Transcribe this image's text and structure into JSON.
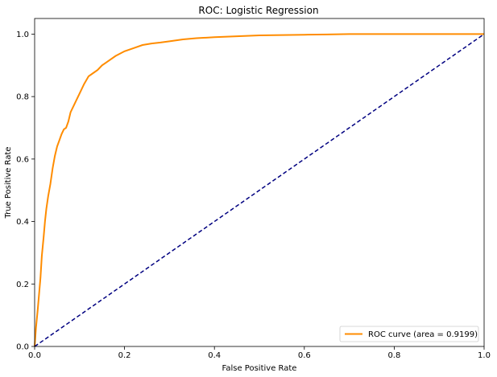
{
  "chart_data": {
    "type": "line",
    "title": "ROC: Logistic Regression",
    "xlabel": "False Positive Rate",
    "ylabel": "True Positive Rate",
    "xlim": [
      0.0,
      1.0
    ],
    "ylim": [
      0.0,
      1.05
    ],
    "x_ticks": [
      0.0,
      0.2,
      0.4,
      0.6,
      0.8,
      1.0
    ],
    "y_ticks": [
      0.0,
      0.2,
      0.4,
      0.6,
      0.8,
      1.0
    ],
    "x_tick_labels": [
      "0.0",
      "0.2",
      "0.4",
      "0.6",
      "0.8",
      "1.0"
    ],
    "y_tick_labels": [
      "0.0",
      "0.2",
      "0.4",
      "0.6",
      "0.8",
      "1.0"
    ],
    "grid": false,
    "legend_position": "lower-right",
    "series": [
      {
        "name": "ROC curve (area = 0.9199)",
        "color": "#ff8c00",
        "style": "solid",
        "x": [
          0.0,
          0.003,
          0.007,
          0.01,
          0.013,
          0.016,
          0.02,
          0.023,
          0.026,
          0.03,
          0.035,
          0.04,
          0.045,
          0.05,
          0.055,
          0.06,
          0.065,
          0.07,
          0.075,
          0.08,
          0.09,
          0.1,
          0.11,
          0.12,
          0.13,
          0.14,
          0.15,
          0.16,
          0.18,
          0.2,
          0.22,
          0.24,
          0.26,
          0.28,
          0.3,
          0.33,
          0.36,
          0.4,
          0.45,
          0.5,
          0.55,
          0.6,
          0.65,
          0.7,
          0.8,
          0.9,
          1.0
        ],
        "y": [
          0.0,
          0.06,
          0.12,
          0.17,
          0.22,
          0.29,
          0.35,
          0.4,
          0.44,
          0.48,
          0.52,
          0.57,
          0.61,
          0.64,
          0.66,
          0.68,
          0.695,
          0.7,
          0.72,
          0.75,
          0.78,
          0.81,
          0.84,
          0.865,
          0.875,
          0.885,
          0.9,
          0.91,
          0.93,
          0.945,
          0.955,
          0.965,
          0.97,
          0.973,
          0.977,
          0.983,
          0.987,
          0.99,
          0.993,
          0.996,
          0.997,
          0.998,
          0.999,
          1.0,
          1.0,
          1.0,
          1.0
        ]
      },
      {
        "name": "",
        "color": "#000080",
        "style": "dashed",
        "x": [
          0.0,
          1.0
        ],
        "y": [
          0.0,
          1.0
        ]
      }
    ]
  }
}
